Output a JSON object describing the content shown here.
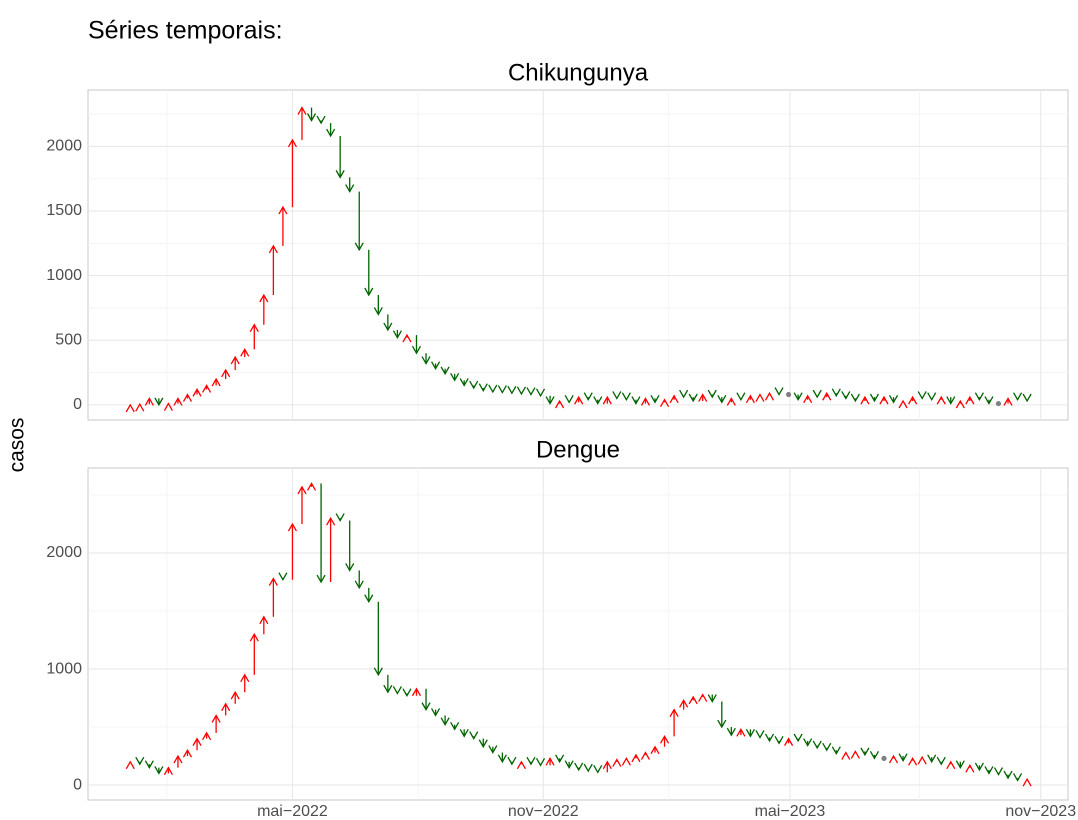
{
  "title": "Séries temporais:",
  "ylabel": "casos",
  "chart_data": [
    {
      "type": "arrow",
      "title": "Chikungunya",
      "xlim": [
        "2021-12-02",
        "2023-11-21"
      ],
      "ylim": [
        -117,
        2436
      ],
      "yticks": [
        0,
        500,
        1000,
        1500,
        2000
      ],
      "xticks": [
        {
          "value": "2022-05-01",
          "label": "mai−2022"
        },
        {
          "value": "2022-11-01",
          "label": "nov−2022"
        },
        {
          "value": "2023-05-01",
          "label": "mai−2023"
        },
        {
          "value": "2023-11-01",
          "label": "nov−2023"
        }
      ],
      "show_xtick_labels": false,
      "grid": true,
      "up_color": "#ff0000",
      "down_color": "#006400",
      "flat_color": "#808080",
      "x": [
        "2022-01-02",
        "2022-01-09",
        "2022-01-16",
        "2022-01-23",
        "2022-01-30",
        "2022-02-06",
        "2022-02-13",
        "2022-02-20",
        "2022-02-27",
        "2022-03-06",
        "2022-03-13",
        "2022-03-20",
        "2022-03-27",
        "2022-04-03",
        "2022-04-10",
        "2022-04-17",
        "2022-04-24",
        "2022-05-01",
        "2022-05-08",
        "2022-05-15",
        "2022-05-22",
        "2022-05-29",
        "2022-06-05",
        "2022-06-12",
        "2022-06-19",
        "2022-06-26",
        "2022-07-03",
        "2022-07-10",
        "2022-07-17",
        "2022-07-24",
        "2022-07-31",
        "2022-08-07",
        "2022-08-14",
        "2022-08-21",
        "2022-08-28",
        "2022-09-04",
        "2022-09-11",
        "2022-09-18",
        "2022-09-25",
        "2022-10-02",
        "2022-10-09",
        "2022-10-16",
        "2022-10-23",
        "2022-10-30",
        "2022-11-06",
        "2022-11-13",
        "2022-11-20",
        "2022-11-27",
        "2022-12-04",
        "2022-12-11",
        "2022-12-18",
        "2022-12-25",
        "2023-01-01",
        "2023-01-08",
        "2023-01-15",
        "2023-01-22",
        "2023-01-29",
        "2023-02-05",
        "2023-02-12",
        "2023-02-19",
        "2023-02-26",
        "2023-03-05",
        "2023-03-12",
        "2023-03-19",
        "2023-03-26",
        "2023-04-02",
        "2023-04-09",
        "2023-04-16",
        "2023-04-23",
        "2023-04-30",
        "2023-05-07",
        "2023-05-14",
        "2023-05-21",
        "2023-05-28",
        "2023-06-04",
        "2023-06-11",
        "2023-06-18",
        "2023-06-25",
        "2023-07-02",
        "2023-07-09",
        "2023-07-16",
        "2023-07-23",
        "2023-07-30",
        "2023-08-06",
        "2023-08-13",
        "2023-08-20",
        "2023-08-27",
        "2023-09-03",
        "2023-09-10",
        "2023-09-17",
        "2023-09-24",
        "2023-10-01",
        "2023-10-08",
        "2023-10-15",
        "2023-10-22"
      ],
      "values": [
        0,
        5,
        50,
        0,
        10,
        50,
        80,
        120,
        150,
        200,
        270,
        370,
        430,
        620,
        850,
        1230,
        1530,
        2050,
        2300,
        2200,
        2180,
        2080,
        1760,
        1650,
        1200,
        850,
        700,
        580,
        520,
        540,
        400,
        320,
        280,
        240,
        190,
        150,
        130,
        110,
        100,
        95,
        90,
        85,
        80,
        70,
        10,
        30,
        20,
        60,
        40,
        10,
        60,
        50,
        40,
        10,
        50,
        20,
        40,
        70,
        60,
        30,
        80,
        60,
        20,
        50,
        40,
        70,
        80,
        90,
        80,
        80,
        40,
        70,
        60,
        90,
        70,
        50,
        30,
        60,
        30,
        60,
        20,
        30,
        60,
        50,
        40,
        60,
        10,
        30,
        60,
        40,
        10,
        10,
        50,
        40,
        30
      ]
    },
    {
      "type": "arrow",
      "title": "Dengue",
      "xlim": [
        "2021-12-02",
        "2023-11-21"
      ],
      "ylim": [
        -129,
        2733
      ],
      "yticks": [
        0,
        1000,
        2000
      ],
      "xticks": [
        {
          "value": "2022-05-01",
          "label": "mai−2022"
        },
        {
          "value": "2022-11-01",
          "label": "nov−2022"
        },
        {
          "value": "2023-05-01",
          "label": "mai−2023"
        },
        {
          "value": "2023-11-01",
          "label": "nov−2023"
        }
      ],
      "show_xtick_labels": true,
      "grid": true,
      "up_color": "#ff0000",
      "down_color": "#006400",
      "flat_color": "#808080",
      "x": [
        "2022-01-02",
        "2022-01-09",
        "2022-01-16",
        "2022-01-23",
        "2022-01-30",
        "2022-02-06",
        "2022-02-13",
        "2022-02-20",
        "2022-02-27",
        "2022-03-06",
        "2022-03-13",
        "2022-03-20",
        "2022-03-27",
        "2022-04-03",
        "2022-04-10",
        "2022-04-17",
        "2022-04-24",
        "2022-05-01",
        "2022-05-08",
        "2022-05-15",
        "2022-05-22",
        "2022-05-29",
        "2022-06-05",
        "2022-06-12",
        "2022-06-19",
        "2022-06-26",
        "2022-07-03",
        "2022-07-10",
        "2022-07-17",
        "2022-07-24",
        "2022-07-31",
        "2022-08-07",
        "2022-08-14",
        "2022-08-21",
        "2022-08-28",
        "2022-09-04",
        "2022-09-11",
        "2022-09-18",
        "2022-09-25",
        "2022-10-02",
        "2022-10-09",
        "2022-10-16",
        "2022-10-23",
        "2022-10-30",
        "2022-11-06",
        "2022-11-13",
        "2022-11-20",
        "2022-11-27",
        "2022-12-04",
        "2022-12-11",
        "2022-12-18",
        "2022-12-25",
        "2023-01-01",
        "2023-01-08",
        "2023-01-15",
        "2023-01-22",
        "2023-01-29",
        "2023-02-05",
        "2023-02-12",
        "2023-02-19",
        "2023-02-26",
        "2023-03-05",
        "2023-03-12",
        "2023-03-19",
        "2023-03-26",
        "2023-04-02",
        "2023-04-09",
        "2023-04-16",
        "2023-04-23",
        "2023-04-30",
        "2023-05-07",
        "2023-05-14",
        "2023-05-21",
        "2023-05-28",
        "2023-06-04",
        "2023-06-11",
        "2023-06-18",
        "2023-06-25",
        "2023-07-02",
        "2023-07-09",
        "2023-07-16",
        "2023-07-23",
        "2023-07-30",
        "2023-08-06",
        "2023-08-13",
        "2023-08-20",
        "2023-08-27",
        "2023-09-03",
        "2023-09-10",
        "2023-09-17",
        "2023-09-24",
        "2023-10-01",
        "2023-10-08",
        "2023-10-15",
        "2023-10-22"
      ],
      "values": [
        200,
        180,
        150,
        100,
        150,
        250,
        300,
        400,
        450,
        600,
        700,
        800,
        950,
        1300,
        1450,
        1780,
        1770,
        2250,
        2570,
        2600,
        1750,
        2300,
        2280,
        1850,
        1700,
        1580,
        950,
        800,
        790,
        770,
        830,
        650,
        600,
        520,
        480,
        420,
        400,
        330,
        280,
        200,
        180,
        200,
        180,
        170,
        230,
        200,
        150,
        130,
        120,
        110,
        200,
        220,
        230,
        260,
        280,
        330,
        420,
        650,
        730,
        760,
        780,
        720,
        500,
        430,
        480,
        420,
        410,
        380,
        360,
        400,
        380,
        340,
        320,
        300,
        270,
        280,
        290,
        260,
        230,
        230,
        250,
        210,
        230,
        240,
        200,
        180,
        200,
        150,
        170,
        130,
        100,
        90,
        60,
        40,
        50
      ]
    }
  ]
}
